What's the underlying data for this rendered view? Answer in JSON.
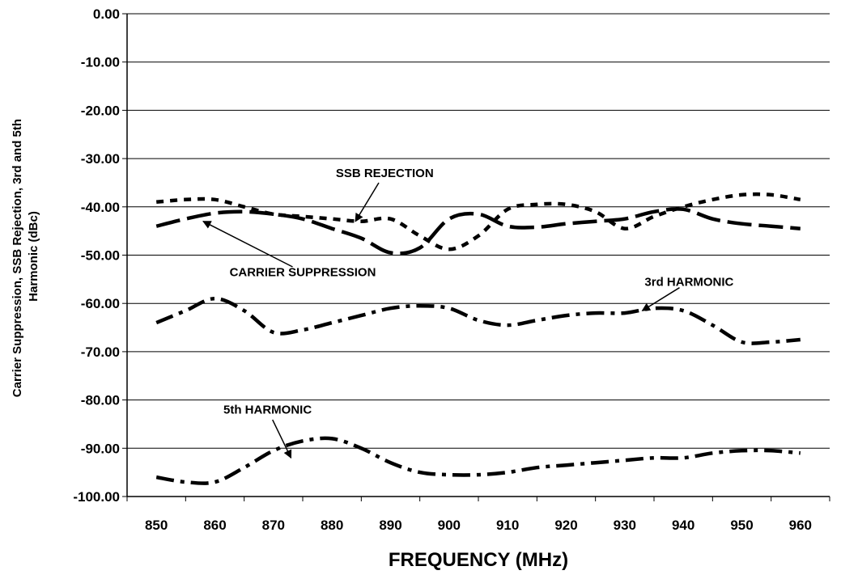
{
  "chart_data": {
    "type": "line",
    "xlabel": "FREQUENCY (MHz)",
    "ylabel_lines": [
      "Carrier Suppression, SSB Rejection, 3rd and 5th",
      "Harmonic (dBc)"
    ],
    "xlim": [
      845,
      965
    ],
    "ylim": [
      -100,
      0
    ],
    "x_ticks": [
      "850",
      "860",
      "870",
      "880",
      "890",
      "900",
      "910",
      "920",
      "930",
      "940",
      "950",
      "960"
    ],
    "y_ticks": [
      "0.00",
      "-10.00",
      "-20.00",
      "-30.00",
      "-40.00",
      "-50.00",
      "-60.00",
      "-70.00",
      "-80.00",
      "-90.00",
      "-100.00"
    ],
    "grid": "horizontal",
    "legend": "none",
    "series": [
      {
        "name": "SSB REJECTION",
        "style": "short-dash",
        "x": [
          850,
          855,
          860,
          865,
          870,
          875,
          880,
          885,
          890,
          895,
          900,
          905,
          910,
          915,
          920,
          925,
          930,
          935,
          940,
          945,
          950,
          955,
          960
        ],
        "y": [
          -39,
          -38.5,
          -38.5,
          -40,
          -41.5,
          -42,
          -42.5,
          -43,
          -42.5,
          -46,
          -48.8,
          -46,
          -40.5,
          -39.5,
          -39.5,
          -41,
          -44.5,
          -42,
          -40,
          -38.5,
          -37.5,
          -37.5,
          -38.5
        ]
      },
      {
        "name": "CARRIER SUPPRESSION",
        "style": "long-dash",
        "x": [
          850,
          855,
          860,
          865,
          870,
          875,
          880,
          885,
          890,
          895,
          900,
          905,
          910,
          915,
          920,
          925,
          930,
          935,
          940,
          945,
          950,
          955,
          960
        ],
        "y": [
          -44,
          -42.5,
          -41.3,
          -41,
          -41.5,
          -42.5,
          -44.5,
          -46.5,
          -49.5,
          -48.5,
          -42.5,
          -41.5,
          -44,
          -44.2,
          -43.5,
          -43,
          -42.5,
          -41,
          -40.5,
          -42.5,
          -43.5,
          -44,
          -44.5
        ]
      },
      {
        "name": "3rd HARMONIC",
        "style": "dash-dot",
        "x": [
          850,
          855,
          860,
          865,
          870,
          875,
          880,
          885,
          890,
          895,
          900,
          905,
          910,
          915,
          920,
          925,
          930,
          935,
          940,
          945,
          950,
          955,
          960
        ],
        "y": [
          -64,
          -61.5,
          -59,
          -61.5,
          -66,
          -65.5,
          -64,
          -62.5,
          -61,
          -60.5,
          -61,
          -63.5,
          -64.5,
          -63.5,
          -62.5,
          -62,
          -62,
          -61,
          -61.5,
          -64.5,
          -68,
          -68,
          -67.5
        ]
      },
      {
        "name": "5th HARMONIC",
        "style": "dash-dot",
        "x": [
          850,
          855,
          860,
          865,
          870,
          875,
          880,
          885,
          890,
          895,
          900,
          905,
          910,
          915,
          920,
          925,
          930,
          935,
          940,
          945,
          950,
          955,
          960
        ],
        "y": [
          -96,
          -97,
          -97,
          -94,
          -90.5,
          -88.5,
          -88,
          -90,
          -93,
          -95,
          -95.5,
          -95.5,
          -95,
          -94,
          -93.5,
          -93,
          -92.5,
          -92,
          -92,
          -91,
          -90.5,
          -90.5,
          -91
        ]
      }
    ],
    "annotations": [
      {
        "text": "SSB REJECTION",
        "x": 889,
        "y": -33,
        "arrow_to": [
          884,
          -43
        ]
      },
      {
        "text": "CARRIER SUPPRESSION",
        "x": 875,
        "y": -53.5,
        "arrow_to": [
          858,
          -43
        ]
      },
      {
        "text": "3rd HARMONIC",
        "x": 941,
        "y": -55.5,
        "arrow_to": [
          933,
          -61.5
        ]
      },
      {
        "text": "5th HARMONIC",
        "x": 869,
        "y": -82,
        "arrow_to": [
          873,
          -92
        ]
      }
    ]
  }
}
